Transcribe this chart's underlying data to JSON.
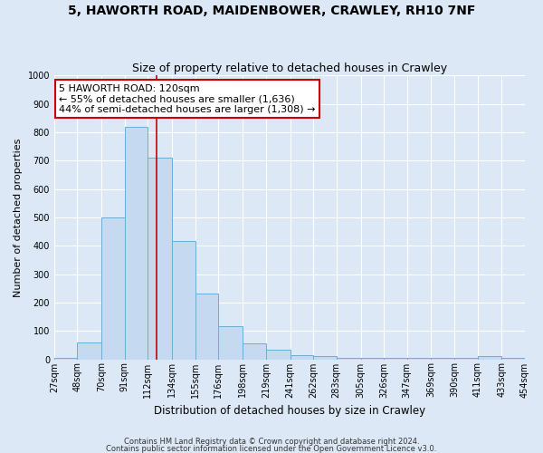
{
  "title": "5, HAWORTH ROAD, MAIDENBOWER, CRAWLEY, RH10 7NF",
  "subtitle": "Size of property relative to detached houses in Crawley",
  "xlabel": "Distribution of detached houses by size in Crawley",
  "ylabel": "Number of detached properties",
  "bar_left_edges": [
    27,
    48,
    70,
    91,
    112,
    134,
    155,
    176,
    198,
    219,
    241,
    262,
    283,
    305,
    326,
    347,
    369,
    390,
    411,
    433
  ],
  "bar_widths": [
    21,
    22,
    21,
    21,
    22,
    21,
    21,
    22,
    21,
    22,
    21,
    21,
    22,
    21,
    21,
    22,
    21,
    21,
    22,
    21
  ],
  "bar_heights": [
    5,
    60,
    500,
    820,
    710,
    415,
    230,
    118,
    55,
    35,
    15,
    10,
    5,
    5,
    5,
    5,
    5,
    5,
    10,
    5
  ],
  "bar_color": "#c5d9f0",
  "bar_edge_color": "#6baed6",
  "tick_labels": [
    "27sqm",
    "48sqm",
    "70sqm",
    "91sqm",
    "112sqm",
    "134sqm",
    "155sqm",
    "176sqm",
    "198sqm",
    "219sqm",
    "241sqm",
    "262sqm",
    "283sqm",
    "305sqm",
    "326sqm",
    "347sqm",
    "369sqm",
    "390sqm",
    "411sqm",
    "433sqm",
    "454sqm"
  ],
  "tick_positions": [
    27,
    48,
    70,
    91,
    112,
    134,
    155,
    176,
    198,
    219,
    241,
    262,
    283,
    305,
    326,
    347,
    369,
    390,
    411,
    433,
    454
  ],
  "xlim": [
    27,
    454
  ],
  "ylim": [
    0,
    1000
  ],
  "red_line_x": 120,
  "annotation_title": "5 HAWORTH ROAD: 120sqm",
  "annotation_line1": "← 55% of detached houses are smaller (1,636)",
  "annotation_line2": "44% of semi-detached houses are larger (1,308) →",
  "annotation_box_color": "#ffffff",
  "annotation_box_edge_color": "#cc0000",
  "footer1": "Contains HM Land Registry data © Crown copyright and database right 2024.",
  "footer2": "Contains public sector information licensed under the Open Government Licence v3.0.",
  "background_color": "#dce8f5",
  "plot_background_color": "#dce8f5",
  "grid_color": "#ffffff",
  "title_fontsize": 10,
  "subtitle_fontsize": 9,
  "tick_fontsize": 7,
  "ylabel_fontsize": 8,
  "xlabel_fontsize": 8.5,
  "annotation_fontsize": 8,
  "footer_fontsize": 6
}
